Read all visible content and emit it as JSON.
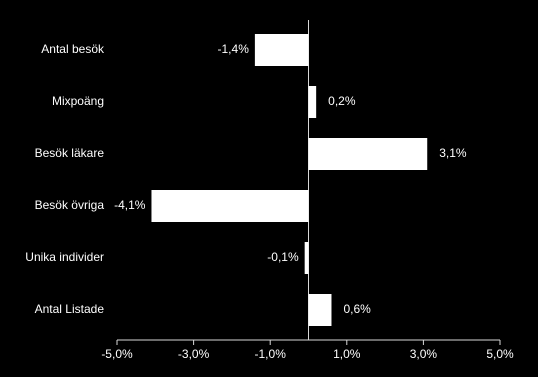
{
  "chart_data": {
    "type": "bar",
    "orientation": "horizontal",
    "background": "#000000",
    "color": "#ffffff",
    "categories": [
      "Antal besök",
      "Mixpoäng",
      "Besök läkare",
      "Besök övriga",
      "Unika individer",
      "Antal Listade"
    ],
    "values": [
      -1.4,
      0.2,
      3.1,
      -4.1,
      -0.1,
      0.6
    ],
    "value_labels": [
      "-1,4%",
      "0,2%",
      "3,1%",
      "-4,1%",
      "-0,1%",
      "0,6%"
    ],
    "xlim": [
      -5,
      5
    ],
    "xticks": [
      {
        "value": -5,
        "label": "-5,0%"
      },
      {
        "value": -3,
        "label": "-3,0%"
      },
      {
        "value": -1,
        "label": "-1,0%"
      },
      {
        "value": 1,
        "label": "1,0%"
      },
      {
        "value": 3,
        "label": "3,0%"
      },
      {
        "value": 5,
        "label": "5,0%"
      }
    ]
  }
}
